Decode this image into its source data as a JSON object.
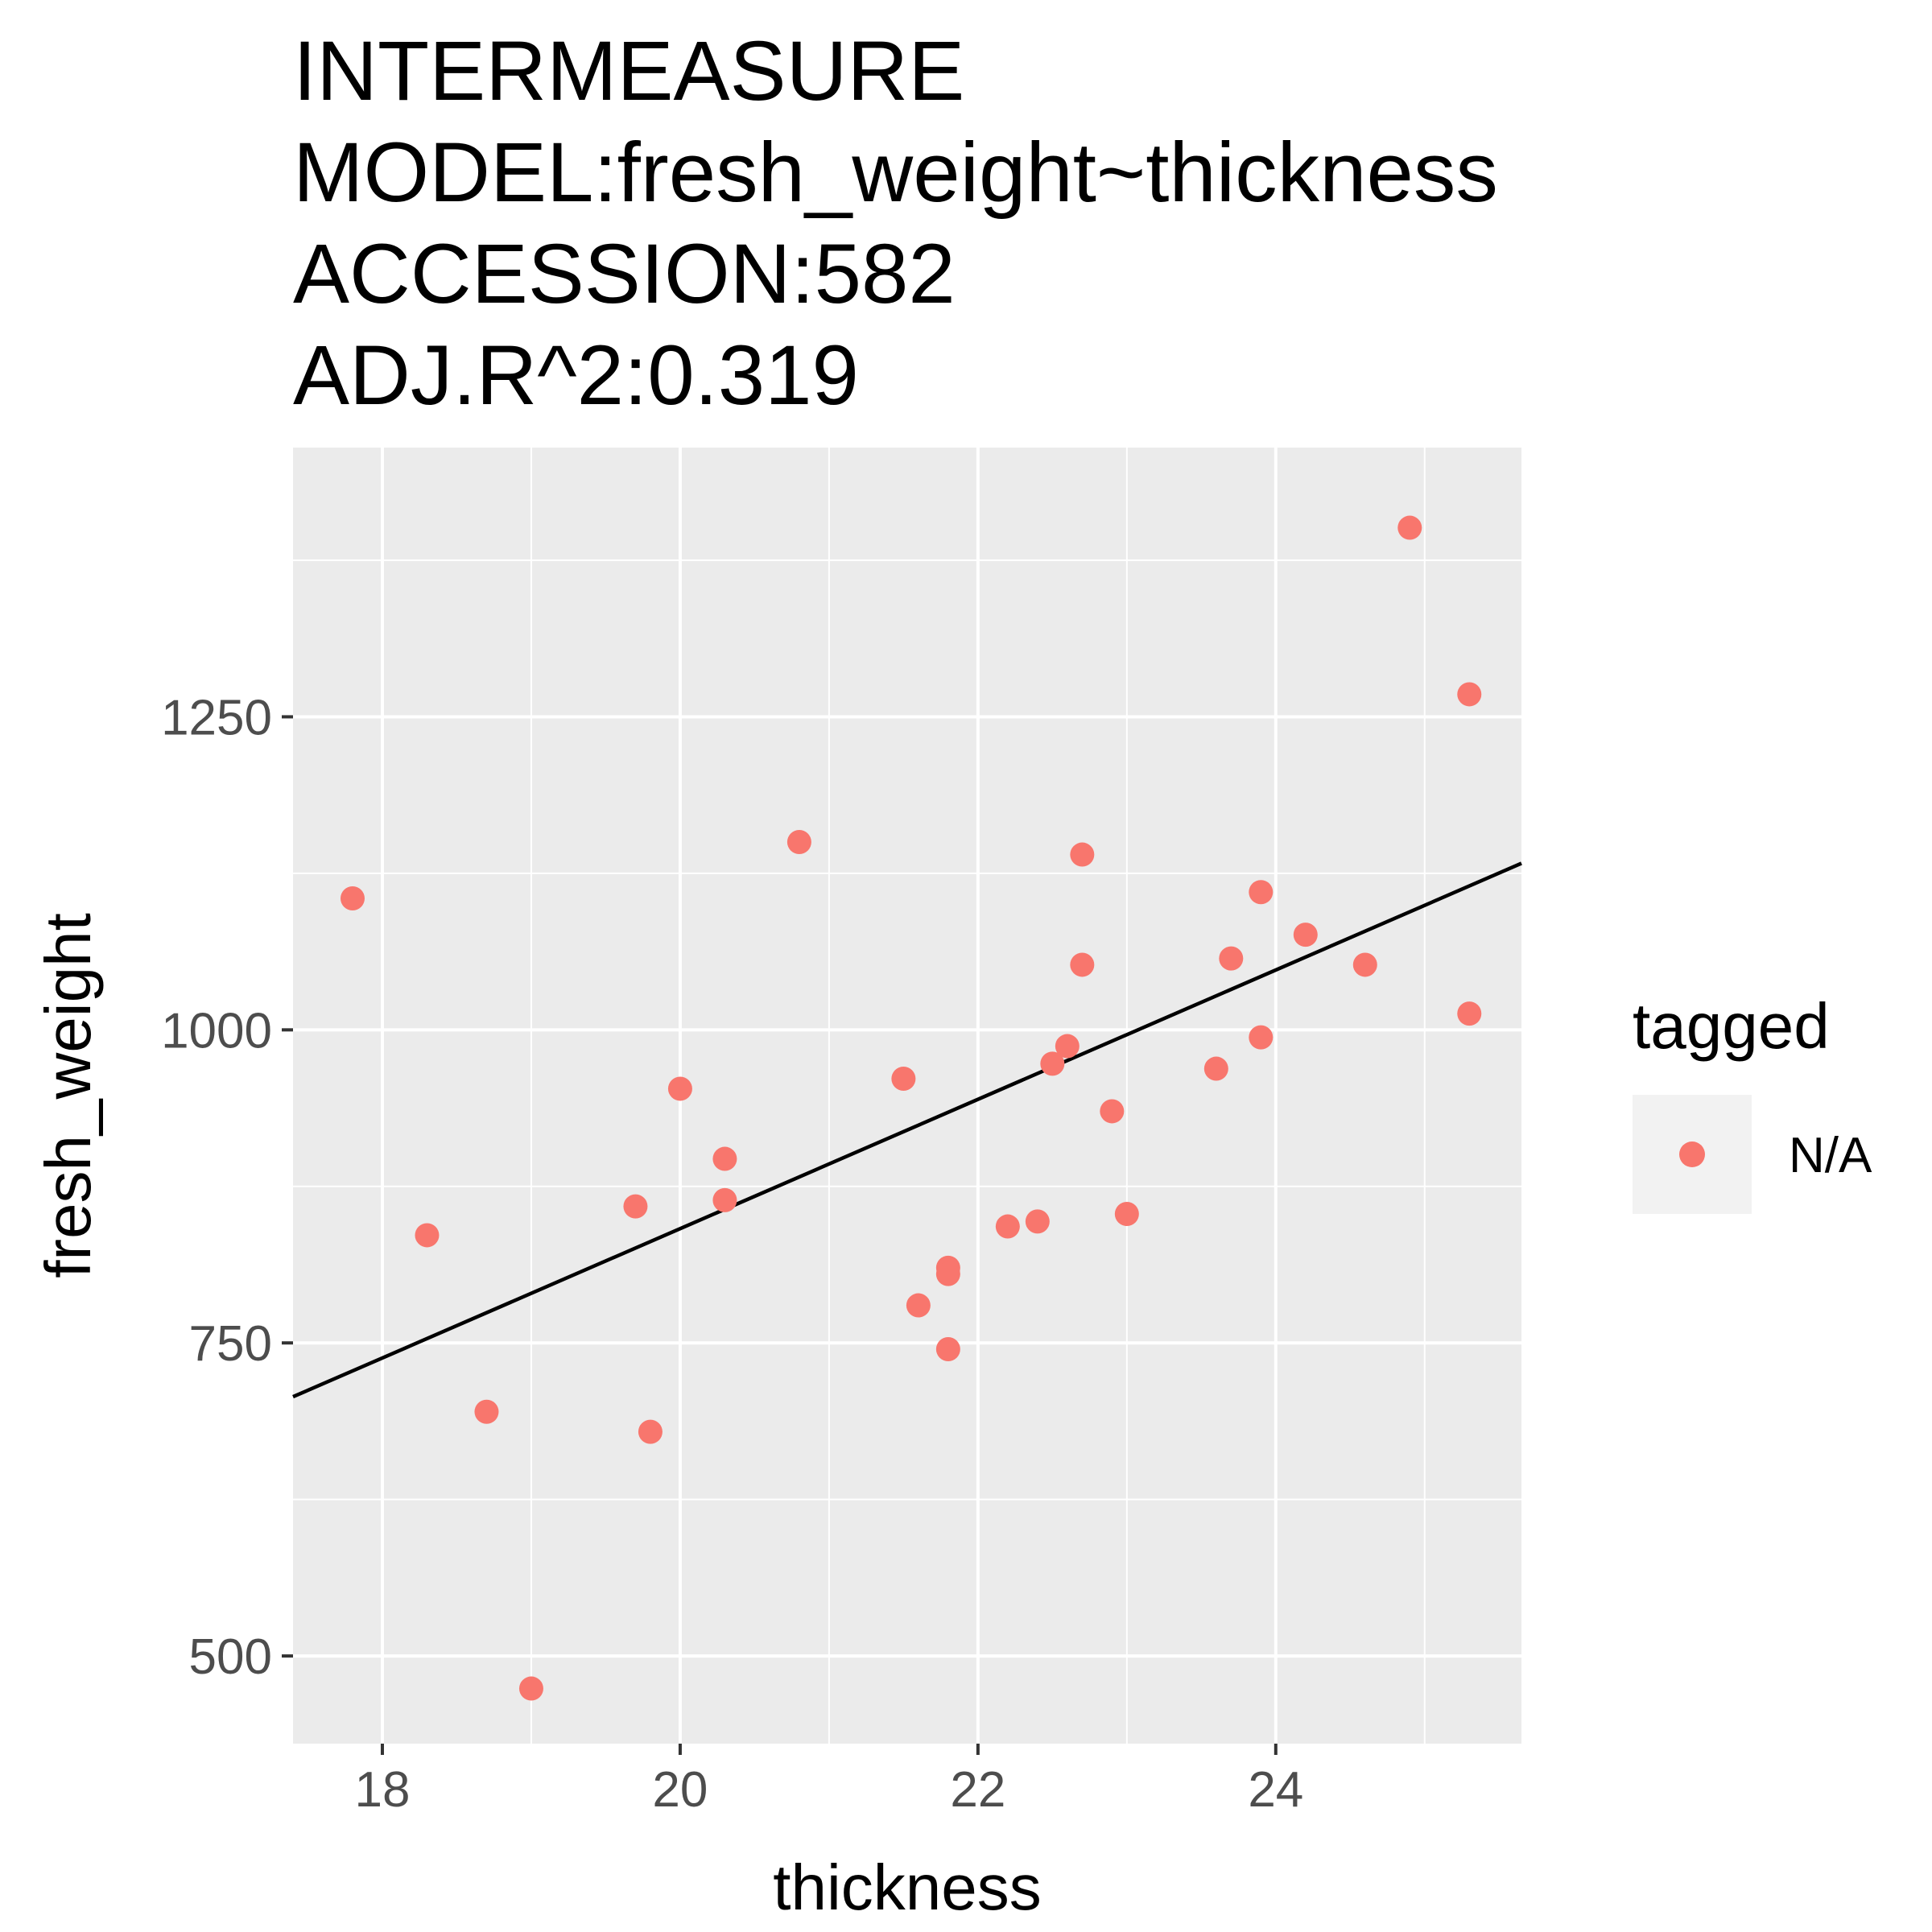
{
  "chart_data": {
    "type": "scatter",
    "title": [
      "INTERMEASURE",
      "MODEL:fresh_weight~thickness",
      "ACCESSION:582",
      "ADJ.R^2:0.319"
    ],
    "xlabel": "thickness",
    "ylabel": "fresh_weight",
    "xlim": [
      17.4,
      25.65
    ],
    "ylim": [
      430,
      1465
    ],
    "x_ticks": [
      18,
      20,
      22,
      24
    ],
    "x_tick_labels": [
      "18",
      "20",
      "22",
      "24"
    ],
    "y_ticks": [
      500,
      750,
      1000,
      1250
    ],
    "y_tick_labels": [
      "500",
      "750",
      "1000",
      "1250"
    ],
    "grid": true,
    "legend": {
      "title": "tagged",
      "position": "right",
      "entries": [
        {
          "label": "N/A",
          "color": "#F8766D"
        }
      ]
    },
    "colors": {
      "point": "#F8766D",
      "panel": "#EBEBEB",
      "grid": "#FFFFFF",
      "fit_line": "#000000"
    },
    "fit_line": {
      "x": [
        17.4,
        25.65
      ],
      "y": [
        707,
        1133
      ]
    },
    "series": [
      {
        "name": "N/A",
        "points": [
          {
            "x": 17.8,
            "y": 1105
          },
          {
            "x": 18.3,
            "y": 836
          },
          {
            "x": 18.7,
            "y": 695
          },
          {
            "x": 19.0,
            "y": 474
          },
          {
            "x": 19.7,
            "y": 859
          },
          {
            "x": 19.8,
            "y": 679
          },
          {
            "x": 20.0,
            "y": 953
          },
          {
            "x": 20.3,
            "y": 897
          },
          {
            "x": 20.3,
            "y": 864
          },
          {
            "x": 20.8,
            "y": 1150
          },
          {
            "x": 21.5,
            "y": 961
          },
          {
            "x": 21.6,
            "y": 780
          },
          {
            "x": 21.8,
            "y": 810
          },
          {
            "x": 21.8,
            "y": 805
          },
          {
            "x": 21.8,
            "y": 745
          },
          {
            "x": 22.2,
            "y": 843
          },
          {
            "x": 22.4,
            "y": 847
          },
          {
            "x": 22.5,
            "y": 973
          },
          {
            "x": 22.6,
            "y": 987
          },
          {
            "x": 22.7,
            "y": 1140
          },
          {
            "x": 22.7,
            "y": 1052
          },
          {
            "x": 22.9,
            "y": 935
          },
          {
            "x": 23.0,
            "y": 853
          },
          {
            "x": 23.6,
            "y": 969
          },
          {
            "x": 23.7,
            "y": 1057
          },
          {
            "x": 23.9,
            "y": 1110
          },
          {
            "x": 23.9,
            "y": 994
          },
          {
            "x": 24.2,
            "y": 1076
          },
          {
            "x": 24.6,
            "y": 1052
          },
          {
            "x": 24.9,
            "y": 1401
          },
          {
            "x": 25.3,
            "y": 1268
          },
          {
            "x": 25.3,
            "y": 1013
          }
        ]
      }
    ]
  }
}
